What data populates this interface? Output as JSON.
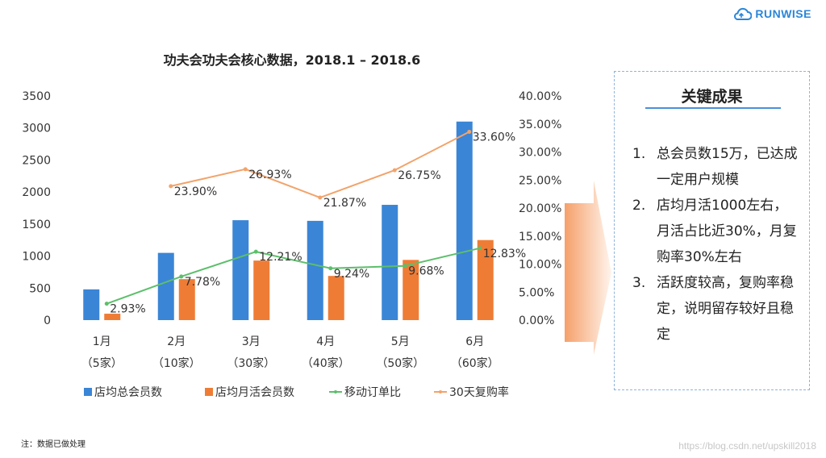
{
  "logo": {
    "text": "RUNWISE"
  },
  "note": "注：数据已做处理",
  "watermark": "https://blog.csdn.net/upskill2018",
  "key_points": {
    "title": "关键成果",
    "items": [
      {
        "num": "1.",
        "text": "总会员数15万，已达成一定用户规模"
      },
      {
        "num": "2.",
        "text": "店均月活1000左右，月活占比近30%，月复购率30%左右"
      },
      {
        "num": "3.",
        "text": "活跃度较高，复购率稳定，说明留存较好且稳定"
      }
    ]
  },
  "colors": {
    "bar_total": "#3a85d6",
    "bar_active": "#ef7c35",
    "line_mobile": "#5cbf6b",
    "line_repurchase": "#f2a36b",
    "arrow_dark": "#f5a06a",
    "arrow_light": "#fff4ec"
  },
  "chart_data": {
    "type": "bar",
    "title": "功夫会功夫会核心数据，2018.1 – 2018.6",
    "categories": [
      "1月",
      "2月",
      "3月",
      "4月",
      "5月",
      "6月"
    ],
    "category_sublabels": [
      "（5家）",
      "（10家）",
      "（30家）",
      "（40家）",
      "（50家）",
      "（60家）"
    ],
    "ylim": [
      0,
      3500
    ],
    "yticks": [
      "0",
      "500",
      "1000",
      "1500",
      "2000",
      "2500",
      "3000",
      "3500"
    ],
    "y2lim": [
      0,
      40
    ],
    "y2ticks": [
      "0.00%",
      "5.00%",
      "10.00%",
      "15.00%",
      "20.00%",
      "25.00%",
      "30.00%",
      "35.00%",
      "40.00%"
    ],
    "legend_position": "bottom",
    "grid": false,
    "series": [
      {
        "name": "店均总会员数",
        "type": "bar",
        "axis": "left",
        "values": [
          480,
          1050,
          1560,
          1550,
          1800,
          3100
        ]
      },
      {
        "name": "店均月活会员数",
        "type": "bar",
        "axis": "left",
        "values": [
          100,
          640,
          930,
          690,
          940,
          1250
        ]
      },
      {
        "name": "移动订单比",
        "type": "line",
        "axis": "right",
        "values": [
          2.93,
          7.78,
          12.21,
          9.24,
          9.68,
          12.83
        ],
        "labels": [
          "2.93%",
          "7.78%",
          "12.21%",
          "9.24%",
          "9.68%",
          "12.83%"
        ]
      },
      {
        "name": "30天复购率",
        "type": "line",
        "axis": "right",
        "values": [
          null,
          23.9,
          26.93,
          21.87,
          26.75,
          33.6
        ],
        "labels": [
          "",
          "23.90%",
          "26.93%",
          "21.87%",
          "26.75%",
          "33.60%"
        ]
      }
    ]
  }
}
